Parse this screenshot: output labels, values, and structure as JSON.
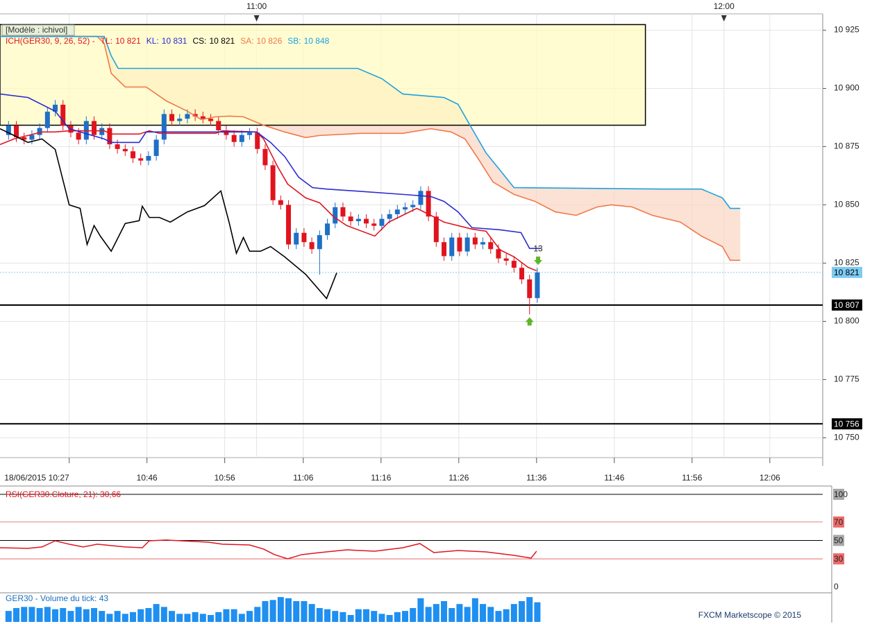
{
  "footer": "FXCM Marketscope © 2015",
  "chart_data": [
    {
      "type": "candlestick",
      "model_label": "[Modèle : ichivol]",
      "indicator": "ICH(GER30, 9, 26, 52) -",
      "xlim": [
        -1.1,
        104.7
      ],
      "xticks": [
        {
          "value": 7.8,
          "label": "18/06/2015 10:27"
        },
        {
          "value": 17.8,
          "label": "10:46"
        },
        {
          "value": 27.8,
          "label": "10:56"
        },
        {
          "value": 37.9,
          "label": "11:06"
        },
        {
          "value": 47.9,
          "label": "11:16"
        },
        {
          "value": 57.9,
          "label": "11:26"
        },
        {
          "value": 67.9,
          "label": "11:36"
        },
        {
          "value": 77.9,
          "label": "11:46"
        },
        {
          "value": 87.9,
          "label": "11:56"
        },
        {
          "value": 97.9,
          "label": "12:06"
        }
      ],
      "top_xticks": [
        {
          "value": 31.9,
          "label": "11:00"
        },
        {
          "value": 92.0,
          "label": "12:00"
        }
      ],
      "ylim": [
        10741.5,
        10932
      ],
      "yticks": [
        {
          "value": 10750,
          "label": "10 750"
        },
        {
          "value": 10775,
          "label": "10 775"
        },
        {
          "value": 10800,
          "label": "10 800"
        },
        {
          "value": 10825,
          "label": "10 825"
        },
        {
          "value": 10850,
          "label": "10 850"
        },
        {
          "value": 10875,
          "label": "10 875"
        },
        {
          "value": 10900,
          "label": "10 900"
        },
        {
          "value": 10925,
          "label": "10 925"
        }
      ],
      "grid": true,
      "up_color": "#1f6fc5",
      "down_color": "#e0141e",
      "open": [
        10880,
        10884,
        10879,
        10878,
        10880,
        10883,
        10890,
        10893,
        10884,
        10881,
        10878,
        10886,
        10880,
        10883,
        10876,
        10874,
        10873,
        10870,
        10869,
        10871,
        10878,
        10889,
        10886,
        10887,
        10889,
        10888,
        10887,
        10886,
        10882,
        10880,
        10877,
        10880,
        10881,
        10874,
        10867,
        10852,
        10850,
        10833,
        10838,
        10834,
        10831,
        10837,
        10842,
        10849,
        10845,
        10843,
        10844,
        10842,
        10841,
        10844,
        10846,
        10848,
        10849,
        10850,
        10856,
        10845,
        10834,
        10828,
        10836,
        10830,
        10836,
        10833,
        10834,
        10831,
        10827,
        10826,
        10823,
        10818,
        10810
      ],
      "high": [
        10886,
        10886,
        10881,
        10882,
        10885,
        10892,
        10895,
        10895,
        10886,
        10883,
        10888,
        10888,
        10885,
        10885,
        10878,
        10876,
        10875,
        10872,
        10873,
        10880,
        10891,
        10891,
        10889,
        10891,
        10891,
        10890,
        10889,
        10888,
        10884,
        10882,
        10882,
        10883,
        10883,
        10876,
        10869,
        10854,
        10852,
        10840,
        10840,
        10836,
        10839,
        10844,
        10851,
        10851,
        10847,
        10846,
        10846,
        10844,
        10846,
        10848,
        10850,
        10851,
        10852,
        10858,
        10858,
        10847,
        10836,
        10838,
        10838,
        10838,
        10838,
        10836,
        10836,
        10833,
        10829,
        10828,
        10825,
        10820,
        10823
      ],
      "low": [
        10878,
        10877,
        10876,
        10876,
        10878,
        10881,
        10888,
        10882,
        10879,
        10876,
        10876,
        10878,
        10878,
        10874,
        10872,
        10871,
        10868,
        10867,
        10867,
        10869,
        10876,
        10884,
        10884,
        10885,
        10886,
        10885,
        10884,
        10880,
        10878,
        10875,
        10875,
        10878,
        10872,
        10865,
        10850,
        10848,
        10831,
        10831,
        10832,
        10829,
        10820,
        10835,
        10840,
        10843,
        10841,
        10841,
        10840,
        10839,
        10839,
        10842,
        10844,
        10846,
        10847,
        10848,
        10843,
        10832,
        10826,
        10826,
        10828,
        10828,
        10831,
        10831,
        10829,
        10825,
        10824,
        10821,
        10816,
        10803,
        10808
      ],
      "close": [
        10884,
        10879,
        10878,
        10880,
        10883,
        10890,
        10893,
        10884,
        10881,
        10878,
        10886,
        10880,
        10883,
        10876,
        10874,
        10873,
        10870,
        10869,
        10871,
        10878,
        10889,
        10886,
        10887,
        10889,
        10888,
        10887,
        10886,
        10882,
        10880,
        10877,
        10880,
        10881,
        10874,
        10867,
        10852,
        10850,
        10833,
        10838,
        10834,
        10831,
        10837,
        10842,
        10849,
        10845,
        10843,
        10844,
        10842,
        10841,
        10844,
        10846,
        10848,
        10849,
        10850,
        10856,
        10845,
        10834,
        10828,
        10836,
        10830,
        10836,
        10833,
        10834,
        10831,
        10827,
        10826,
        10823,
        10818,
        10810,
        10821
      ],
      "series": [
        {
          "name": "TL:",
          "legend_label": "10 821",
          "color": "#e0141e",
          "x": [
            -1.1,
            0.7,
            2.5,
            4.3,
            6.0,
            7.8,
            12.3,
            13.2,
            16.8,
            18.1,
            19.4,
            26.6,
            27.5,
            31.9,
            32.8,
            34.6,
            35.9,
            38.2,
            40.0,
            41.8,
            43.5,
            47.1,
            48.9,
            52.5,
            54.3,
            56.0,
            59.6,
            61.4,
            63.2,
            65.0,
            66.8,
            67.9
          ],
          "values": [
            10875.9,
            10878.3,
            10879.8,
            10881.3,
            10881.3,
            10881.8,
            10881.8,
            10880.4,
            10880.4,
            10881.8,
            10880.7,
            10880.7,
            10881.8,
            10881.3,
            10878.3,
            10866.4,
            10858.9,
            10853.0,
            10850.9,
            10844.9,
            10841.1,
            10836.6,
            10842.6,
            10848.5,
            10845.5,
            10842.6,
            10839.6,
            10838.7,
            10830.7,
            10827.7,
            10823.2,
            10821.7
          ]
        },
        {
          "name": "KL:",
          "legend_label": "10 831",
          "color": "#2b2bd0",
          "x": [
            -1.1,
            2.5,
            6.0,
            7.8,
            12.3,
            13.2,
            16.8,
            17.7,
            20.3,
            25.7,
            27.5,
            31.9,
            33.7,
            35.5,
            37.3,
            39.1,
            40.9,
            44.4,
            50.7,
            54.3,
            56.0,
            57.8,
            59.6,
            63.2,
            65.9,
            67.0,
            68.4
          ],
          "values": [
            10897.6,
            10896.1,
            10890.2,
            10882.7,
            10878.3,
            10876.8,
            10876.8,
            10881.3,
            10881.3,
            10881.3,
            10881.3,
            10881.3,
            10876.8,
            10870.8,
            10861.9,
            10857.4,
            10856.8,
            10856.0,
            10854.5,
            10853.6,
            10851.5,
            10847.0,
            10840.2,
            10839.3,
            10838.1,
            10831.3,
            10831.3
          ]
        },
        {
          "name": "CS:",
          "legend_label": "10 821",
          "color": "#000000",
          "x": [
            -1.1,
            0.7,
            2.5,
            4.3,
            6.0,
            7.8,
            9.2,
            10.1,
            11.0,
            11.8,
            13.2,
            15.0,
            16.8,
            17.2,
            18.1,
            19.4,
            20.8,
            23.0,
            25.2,
            27.3,
            28.4,
            29.3,
            30.2,
            31.0,
            32.4,
            33.7,
            35.5,
            38.2,
            40.9,
            42.2
          ],
          "values": [
            10882.7,
            10879.8,
            10876.8,
            10878.3,
            10873.8,
            10850.0,
            10848.5,
            10833.0,
            10841.1,
            10836.6,
            10830.1,
            10842.0,
            10843.2,
            10849.4,
            10844.6,
            10844.6,
            10842.6,
            10847.0,
            10849.7,
            10856.0,
            10842.0,
            10829.2,
            10836.0,
            10830.1,
            10830.1,
            10832.1,
            10827.7,
            10820.2,
            10809.8,
            10820.8
          ]
        },
        {
          "name": "SA:",
          "legend_label": "10 826",
          "color": "#f07848",
          "x": [
            -1.1,
            11.4,
            12.3,
            13.2,
            15.0,
            17.7,
            20.3,
            23.0,
            24.8,
            26.6,
            28.4,
            30.2,
            32.8,
            35.5,
            38.2,
            40.0,
            45.3,
            50.7,
            54.3,
            56.9,
            58.7,
            60.5,
            62.3,
            65.0,
            67.7,
            70.3,
            73.0,
            75.7,
            77.5,
            80.2,
            82.8,
            86.4,
            89.1,
            91.8,
            92.8,
            94.1
          ],
          "values": [
            10922.3,
            10922.3,
            10919.3,
            10906.5,
            10900.6,
            10900.6,
            10894.6,
            10890.2,
            10886.6,
            10887.8,
            10888.1,
            10887.8,
            10884.2,
            10881.3,
            10878.9,
            10879.8,
            10880.7,
            10880.7,
            10882.7,
            10881.3,
            10878.3,
            10869.3,
            10859.8,
            10854.5,
            10851.5,
            10847.0,
            10845.5,
            10849.1,
            10850.0,
            10849.1,
            10845.5,
            10842.6,
            10836.6,
            10832.1,
            10826.2,
            10826.2
          ]
        },
        {
          "name": "SB:",
          "legend_label": "10 848",
          "color": "#1ea0e0",
          "x": [
            -1.1,
            12.3,
            13.2,
            14.1,
            44.9,
            48.0,
            50.7,
            56.0,
            57.8,
            59.6,
            61.4,
            63.2,
            65.0,
            84.2,
            89.1,
            91.8,
            92.8,
            94.1
          ],
          "values": [
            10922.3,
            10922.3,
            10914.0,
            10908.6,
            10908.6,
            10904.2,
            10897.6,
            10896.1,
            10893.2,
            10882.7,
            10872.3,
            10864.9,
            10857.4,
            10856.8,
            10856.8,
            10853.0,
            10848.5,
            10848.5
          ]
        }
      ],
      "cloud_color": "#fbd5c2",
      "box": {
        "x": [
          -1.1,
          81.9
        ],
        "y": [
          10884.2,
          10927.4
        ],
        "color": "#fffbc0"
      },
      "levels": [
        {
          "value": 10807,
          "label": "10 807"
        },
        {
          "value": 10756,
          "label": "10 756"
        }
      ],
      "current": {
        "value": 10821,
        "label": "10 821",
        "color": "#7ecbf2"
      },
      "annotation": {
        "text": "13",
        "x": 68.1,
        "y": 10831
      },
      "signals": [
        {
          "x": 68.1,
          "y": 10826,
          "direction": "down"
        },
        {
          "x": 67.0,
          "y": 10800,
          "direction": "up"
        }
      ],
      "signal_color": "#5fb52a"
    },
    {
      "type": "line",
      "title": "RSI(GER30.Cloture, 21): 30,66",
      "color": "#e0141e",
      "ylim": [
        -6.8,
        107.5
      ],
      "yticks": [
        0,
        30,
        50,
        70,
        100
      ],
      "levels": [
        30,
        70
      ],
      "x": [
        -1.1,
        2.5,
        4.3,
        6.0,
        7.8,
        9.6,
        11.4,
        13.2,
        15.0,
        17.2,
        18.1,
        20.3,
        25.7,
        27.5,
        31.0,
        32.8,
        34.2,
        35.9,
        37.7,
        40.0,
        43.5,
        47.1,
        50.7,
        52.9,
        54.7,
        57.8,
        61.4,
        65.0,
        67.2,
        67.9
      ],
      "values": [
        42.1,
        41.4,
        42.9,
        49.6,
        45.9,
        42.9,
        45.9,
        44.4,
        42.9,
        42.1,
        49.6,
        50.4,
        48.1,
        45.9,
        45.1,
        40.6,
        34.6,
        30.1,
        34.6,
        36.8,
        39.8,
        38.3,
        42.1,
        46.6,
        36.8,
        39.1,
        37.6,
        33.8,
        30.8,
        38.3
      ]
    },
    {
      "type": "bar",
      "title": "GER30 - Volume du tick: 43",
      "color": "#1f8ff0",
      "ylim": [
        0,
        48
      ],
      "values": [
        19,
        24,
        26,
        26,
        24,
        26,
        22,
        24,
        19,
        26,
        22,
        24,
        19,
        14,
        19,
        14,
        17,
        22,
        24,
        31,
        26,
        19,
        14,
        14,
        17,
        14,
        12,
        17,
        22,
        22,
        14,
        19,
        26,
        36,
        38,
        43,
        41,
        36,
        36,
        31,
        24,
        22,
        19,
        17,
        12,
        22,
        22,
        19,
        14,
        12,
        17,
        19,
        24,
        41,
        26,
        31,
        36,
        24,
        31,
        26,
        41,
        31,
        26,
        19,
        22,
        31,
        36,
        43,
        34
      ]
    }
  ]
}
